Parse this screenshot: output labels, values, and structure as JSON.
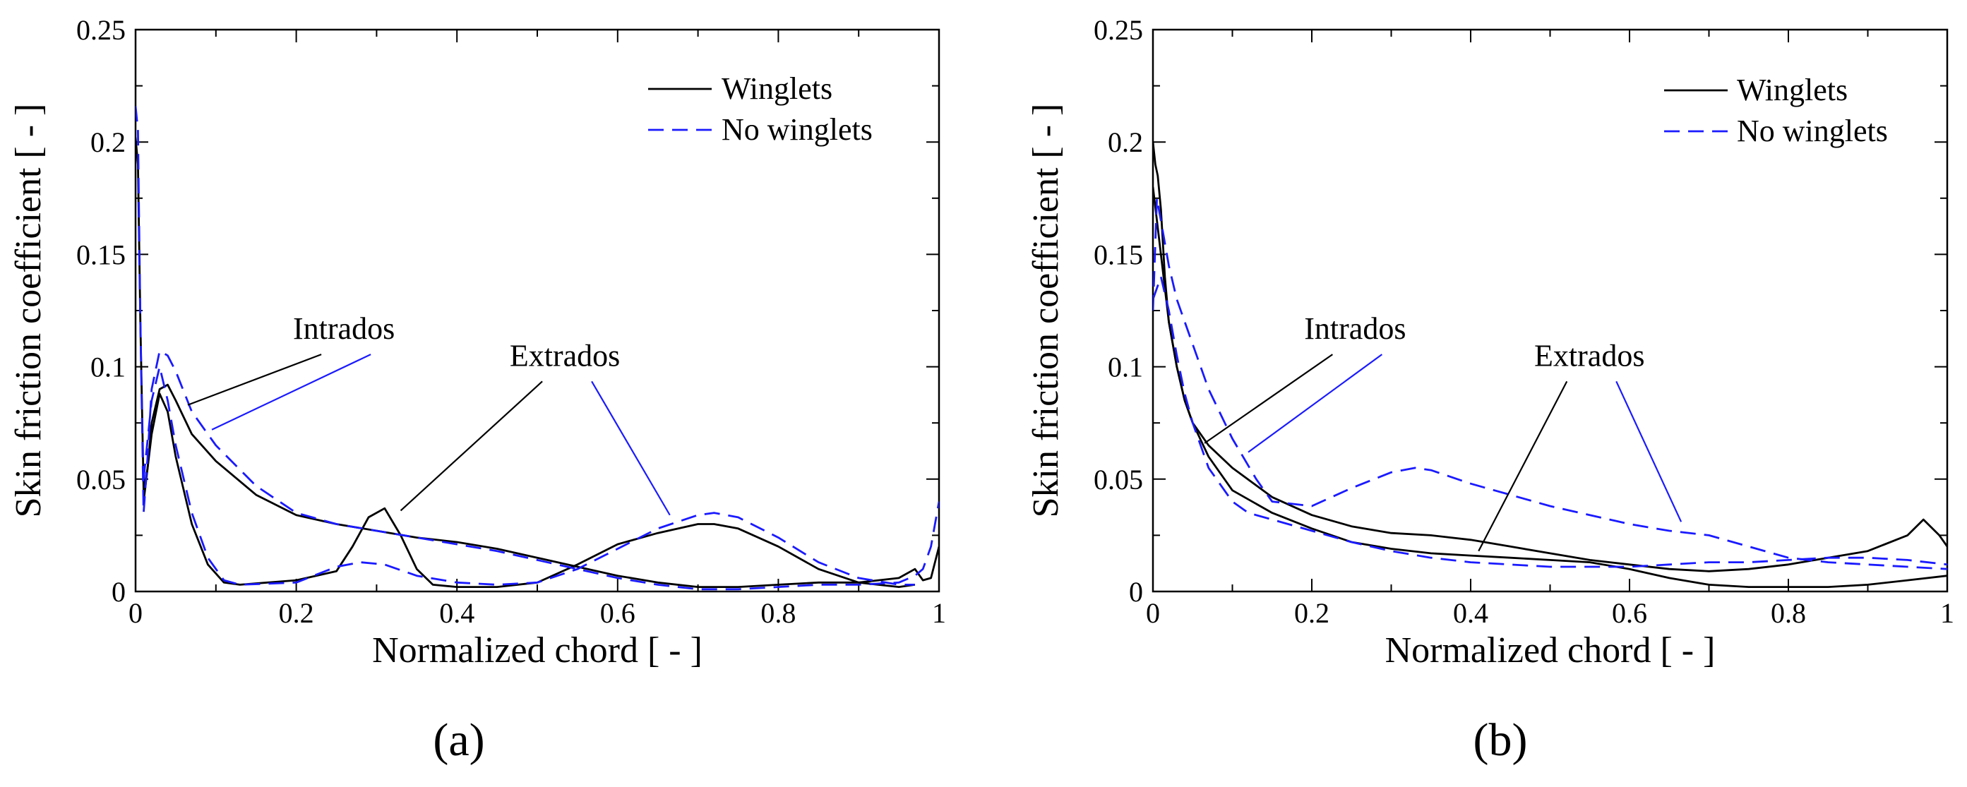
{
  "colors": {
    "winglets": "#000000",
    "no_winglets": "#1a1aff",
    "axes": "#000000"
  },
  "chart_data": [
    {
      "type": "line",
      "caption": "(a)",
      "xlabel": "Normalized chord [ - ]",
      "ylabel": "Skin friction coefficient [ - ]",
      "xlim": [
        0,
        1
      ],
      "ylim": [
        0,
        0.25
      ],
      "x_ticks": [
        0,
        0.2,
        0.4,
        0.6,
        0.8,
        1
      ],
      "x_tick_labels": [
        "0",
        "0.2",
        "0.4",
        "0.6",
        "0.8",
        "1"
      ],
      "y_ticks": [
        0,
        0.05,
        0.1,
        0.15,
        0.2,
        0.25
      ],
      "y_tick_labels": [
        "0",
        "0.05",
        "0.1",
        "0.15",
        "0.2",
        "0.25"
      ],
      "grid": false,
      "legend_position": "top-right",
      "legend": [
        "Winglets",
        "No winglets"
      ],
      "annotations": [
        {
          "text": "Intrados",
          "x": 0.24,
          "y": 0.108,
          "pointers": [
            {
              "series": "Winglets",
              "x": 0.065,
              "y": 0.083
            },
            {
              "series": "No winglets",
              "x": 0.095,
              "y": 0.072
            }
          ]
        },
        {
          "text": "Extrados",
          "x": 0.515,
          "y": 0.096,
          "pointers": [
            {
              "series": "Winglets",
              "x": 0.33,
              "y": 0.036
            },
            {
              "series": "No winglets",
              "x": 0.665,
              "y": 0.034
            }
          ]
        }
      ],
      "series": [
        {
          "name": "Winglets",
          "style": "solid",
          "curves": [
            {
              "x": [
                0,
                0.003,
                0.006,
                0.01,
                0.015,
                0.02,
                0.03,
                0.04,
                0.05,
                0.07,
                0.1,
                0.15,
                0.2,
                0.25,
                0.3,
                0.35,
                0.4,
                0.45,
                0.5,
                0.55,
                0.6,
                0.65,
                0.7,
                0.75,
                0.8,
                0.85,
                0.9,
                0.95,
                0.97,
                0.98,
                0.99,
                1.0
              ],
              "y": [
                0.202,
                0.19,
                0.12,
                0.045,
                0.055,
                0.075,
                0.09,
                0.092,
                0.085,
                0.07,
                0.058,
                0.043,
                0.034,
                0.03,
                0.027,
                0.024,
                0.022,
                0.019,
                0.015,
                0.011,
                0.007,
                0.004,
                0.002,
                0.002,
                0.003,
                0.004,
                0.004,
                0.006,
                0.01,
                0.005,
                0.006,
                0.02
              ]
            },
            {
              "x": [
                0.01,
                0.02,
                0.03,
                0.04,
                0.05,
                0.07,
                0.09,
                0.11,
                0.13,
                0.2,
                0.25,
                0.27,
                0.29,
                0.31,
                0.33,
                0.35,
                0.37,
                0.4,
                0.45,
                0.5,
                0.55,
                0.6,
                0.65,
                0.7,
                0.72,
                0.75,
                0.8,
                0.85,
                0.9,
                0.95,
                0.97
              ],
              "y": [
                0.04,
                0.07,
                0.088,
                0.08,
                0.06,
                0.03,
                0.012,
                0.004,
                0.003,
                0.005,
                0.009,
                0.02,
                0.033,
                0.037,
                0.025,
                0.01,
                0.003,
                0.002,
                0.002,
                0.004,
                0.012,
                0.021,
                0.026,
                0.03,
                0.03,
                0.028,
                0.02,
                0.01,
                0.004,
                0.002,
                0.003
              ]
            }
          ]
        },
        {
          "name": "No winglets",
          "style": "dashed",
          "curves": [
            {
              "x": [
                0,
                0.003,
                0.006,
                0.01,
                0.015,
                0.02,
                0.03,
                0.04,
                0.05,
                0.07,
                0.1,
                0.15,
                0.2,
                0.25,
                0.3,
                0.35,
                0.4,
                0.45,
                0.5,
                0.55,
                0.6,
                0.65,
                0.7,
                0.75,
                0.8,
                0.85,
                0.9,
                0.95,
                0.97,
                0.98,
                0.99,
                1.0
              ],
              "y": [
                0.216,
                0.205,
                0.12,
                0.035,
                0.06,
                0.09,
                0.107,
                0.105,
                0.098,
                0.08,
                0.065,
                0.047,
                0.035,
                0.03,
                0.027,
                0.024,
                0.021,
                0.018,
                0.014,
                0.01,
                0.006,
                0.003,
                0.001,
                0.001,
                0.002,
                0.003,
                0.003,
                0.004,
                0.007,
                0.01,
                0.02,
                0.04
              ]
            },
            {
              "x": [
                0.01,
                0.02,
                0.03,
                0.04,
                0.05,
                0.07,
                0.09,
                0.11,
                0.13,
                0.2,
                0.25,
                0.28,
                0.31,
                0.35,
                0.4,
                0.45,
                0.5,
                0.55,
                0.6,
                0.65,
                0.7,
                0.72,
                0.75,
                0.8,
                0.85,
                0.9,
                0.95,
                0.97
              ],
              "y": [
                0.05,
                0.085,
                0.1,
                0.085,
                0.065,
                0.035,
                0.015,
                0.005,
                0.003,
                0.004,
                0.011,
                0.013,
                0.012,
                0.007,
                0.004,
                0.003,
                0.004,
                0.01,
                0.019,
                0.028,
                0.034,
                0.035,
                0.033,
                0.024,
                0.013,
                0.006,
                0.003,
                0.003
              ]
            }
          ]
        }
      ]
    },
    {
      "type": "line",
      "caption": "(b)",
      "xlabel": "Normalized chord [ - ]",
      "ylabel": "Skin friction coefficient [ - ]",
      "xlim": [
        0,
        1
      ],
      "ylim": [
        0,
        0.25
      ],
      "x_ticks": [
        0,
        0.2,
        0.4,
        0.6,
        0.8,
        1
      ],
      "x_tick_labels": [
        "0",
        "0.2",
        "0.4",
        "0.6",
        "0.8",
        "1"
      ],
      "y_ticks": [
        0,
        0.05,
        0.1,
        0.15,
        0.2,
        0.25
      ],
      "y_tick_labels": [
        "0",
        "0.05",
        "0.1",
        "0.15",
        "0.2",
        "0.25"
      ],
      "grid": false,
      "legend_position": "top-right",
      "legend": [
        "Winglets",
        "No winglets"
      ],
      "annotations": [
        {
          "text": "Intrados",
          "x": 0.235,
          "y": 0.108,
          "pointers": [
            {
              "series": "Winglets",
              "x": 0.065,
              "y": 0.066
            },
            {
              "series": "No winglets",
              "x": 0.12,
              "y": 0.062
            }
          ]
        },
        {
          "text": "Extrados",
          "x": 0.53,
          "y": 0.096,
          "pointers": [
            {
              "series": "Winglets",
              "x": 0.41,
              "y": 0.018
            },
            {
              "series": "No winglets",
              "x": 0.665,
              "y": 0.031
            }
          ]
        }
      ],
      "series": [
        {
          "name": "Winglets",
          "style": "solid",
          "curves": [
            {
              "x": [
                0,
                0.003,
                0.006,
                0.01,
                0.015,
                0.02,
                0.03,
                0.04,
                0.05,
                0.07,
                0.1,
                0.15,
                0.2,
                0.25,
                0.3,
                0.35,
                0.4,
                0.45,
                0.5,
                0.55,
                0.6,
                0.65,
                0.7,
                0.75,
                0.8,
                0.85,
                0.9,
                0.95,
                0.97,
                0.99,
                1.0
              ],
              "y": [
                0.2,
                0.19,
                0.185,
                0.17,
                0.14,
                0.12,
                0.1,
                0.085,
                0.075,
                0.065,
                0.055,
                0.042,
                0.034,
                0.029,
                0.026,
                0.025,
                0.023,
                0.02,
                0.017,
                0.014,
                0.012,
                0.01,
                0.009,
                0.01,
                0.012,
                0.015,
                0.018,
                0.025,
                0.032,
                0.025,
                0.02
              ]
            },
            {
              "x": [
                0,
                0.01,
                0.02,
                0.03,
                0.04,
                0.05,
                0.07,
                0.1,
                0.15,
                0.2,
                0.25,
                0.3,
                0.35,
                0.4,
                0.45,
                0.5,
                0.55,
                0.6,
                0.65,
                0.7,
                0.75,
                0.8,
                0.85,
                0.9,
                0.95,
                1.0
              ],
              "y": [
                0.18,
                0.15,
                0.12,
                0.1,
                0.085,
                0.075,
                0.06,
                0.045,
                0.035,
                0.028,
                0.022,
                0.019,
                0.017,
                0.016,
                0.015,
                0.014,
                0.013,
                0.01,
                0.006,
                0.003,
                0.002,
                0.002,
                0.002,
                0.003,
                0.005,
                0.007
              ]
            }
          ]
        },
        {
          "name": "No winglets",
          "style": "dashed",
          "curves": [
            {
              "x": [
                0,
                0.005,
                0.01,
                0.02,
                0.03,
                0.05,
                0.07,
                0.1,
                0.13,
                0.15,
                0.2,
                0.25,
                0.3,
                0.33,
                0.35,
                0.4,
                0.45,
                0.5,
                0.55,
                0.6,
                0.65,
                0.7,
                0.75,
                0.8,
                0.85,
                0.9,
                0.95,
                1.0
              ],
              "y": [
                0.125,
                0.175,
                0.165,
                0.145,
                0.13,
                0.11,
                0.09,
                0.068,
                0.05,
                0.04,
                0.038,
                0.046,
                0.053,
                0.055,
                0.054,
                0.048,
                0.043,
                0.038,
                0.034,
                0.03,
                0.027,
                0.025,
                0.02,
                0.015,
                0.013,
                0.012,
                0.011,
                0.01
              ]
            },
            {
              "x": [
                0,
                0.01,
                0.02,
                0.03,
                0.04,
                0.05,
                0.07,
                0.1,
                0.12,
                0.15,
                0.2,
                0.25,
                0.3,
                0.35,
                0.4,
                0.45,
                0.5,
                0.55,
                0.6,
                0.65,
                0.7,
                0.75,
                0.8,
                0.85,
                0.9,
                0.95,
                1.0
              ],
              "y": [
                0.13,
                0.14,
                0.125,
                0.105,
                0.088,
                0.075,
                0.055,
                0.04,
                0.035,
                0.032,
                0.027,
                0.022,
                0.018,
                0.015,
                0.013,
                0.012,
                0.011,
                0.011,
                0.011,
                0.012,
                0.013,
                0.013,
                0.014,
                0.015,
                0.015,
                0.014,
                0.012
              ]
            }
          ]
        }
      ]
    }
  ]
}
